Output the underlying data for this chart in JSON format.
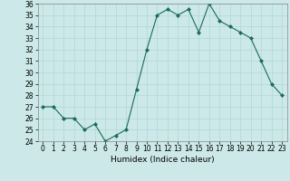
{
  "x": [
    0,
    1,
    2,
    3,
    4,
    5,
    6,
    7,
    8,
    9,
    10,
    11,
    12,
    13,
    14,
    15,
    16,
    17,
    18,
    19,
    20,
    21,
    22,
    23
  ],
  "y": [
    27,
    27,
    26,
    26,
    25,
    25.5,
    24,
    24.5,
    25,
    28.5,
    32,
    35,
    35.5,
    35,
    35.5,
    33.5,
    36,
    34.5,
    34,
    33.5,
    33,
    31,
    29,
    28
  ],
  "xlabel": "Humidex (Indice chaleur)",
  "ylim": [
    24,
    36
  ],
  "xlim": [
    -0.5,
    23.5
  ],
  "yticks": [
    24,
    25,
    26,
    27,
    28,
    29,
    30,
    31,
    32,
    33,
    34,
    35,
    36
  ],
  "xticks": [
    0,
    1,
    2,
    3,
    4,
    5,
    6,
    7,
    8,
    9,
    10,
    11,
    12,
    13,
    14,
    15,
    16,
    17,
    18,
    19,
    20,
    21,
    22,
    23
  ],
  "line_color": "#1a6b5a",
  "marker": "D",
  "marker_size": 2.0,
  "bg_color": "#cce8e8",
  "grid_color": "#b0d8d8",
  "tick_fontsize": 5.5,
  "xlabel_fontsize": 6.5
}
